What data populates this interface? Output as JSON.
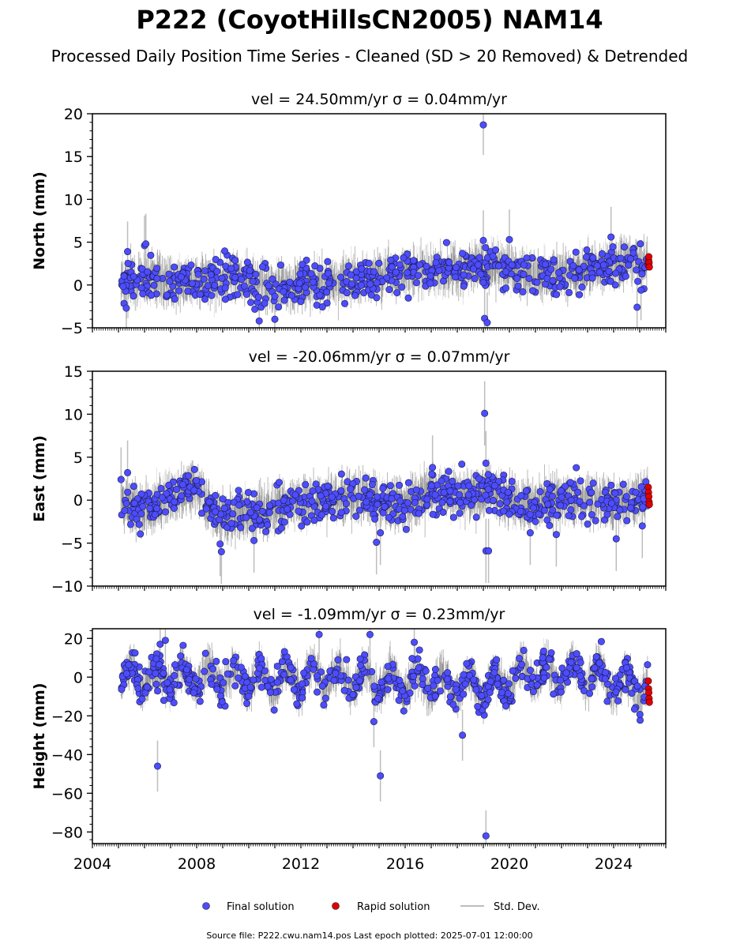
{
  "header": {
    "title": "P222 (CoyotHillsCN2005) NAM14",
    "subtitle": "Processed Daily Position Time Series - Cleaned (SD > 20 Removed) & Detrended"
  },
  "colors": {
    "final": "#4d4dff",
    "rapid": "#e00000",
    "std_dev": "#bdbdbd"
  },
  "legend": {
    "final_label": "Final solution",
    "rapid_label": "Rapid solution",
    "std_label": "Std. Dev."
  },
  "footer": {
    "source_text": "Source file: P222.cwu.nam14.pos  Last epoch plotted: 2025-07-01 12:00:00"
  },
  "chart_data": [
    {
      "type": "scatter",
      "panel": "north",
      "title": "vel = 24.50mm/yr   σ = 0.04mm/yr",
      "ylabel": "North (mm)",
      "xlim": [
        2004.0,
        2026.0
      ],
      "ylim": [
        -5,
        20
      ],
      "yticks": [
        -5,
        0,
        5,
        10,
        15,
        20
      ],
      "baseline": [
        [
          2005.1,
          0.3
        ],
        [
          2006.5,
          0.6
        ],
        [
          2008.0,
          0.3
        ],
        [
          2009.5,
          0.9
        ],
        [
          2011.0,
          -0.3
        ],
        [
          2012.5,
          0.2
        ],
        [
          2014.0,
          0.6
        ],
        [
          2015.5,
          1.3
        ],
        [
          2017.0,
          1.6
        ],
        [
          2018.5,
          1.8
        ],
        [
          2019.5,
          2.4
        ],
        [
          2020.5,
          1.5
        ],
        [
          2022.0,
          1.2
        ],
        [
          2023.5,
          2.2
        ],
        [
          2025.3,
          2.7
        ]
      ],
      "noise": 1.2,
      "band": 1.6,
      "outliers": [
        {
          "x": 2005.35,
          "y": 3.9
        },
        {
          "x": 2005.3,
          "y": -2.7
        },
        {
          "x": 2006.0,
          "y": 4.6
        },
        {
          "x": 2006.05,
          "y": 4.8
        },
        {
          "x": 2010.4,
          "y": -4.2
        },
        {
          "x": 2011.0,
          "y": -4.0
        },
        {
          "x": 2019.0,
          "y": 18.7
        },
        {
          "x": 2019.0,
          "y": 5.2
        },
        {
          "x": 2019.05,
          "y": -3.9
        },
        {
          "x": 2019.15,
          "y": -4.4
        },
        {
          "x": 2020.0,
          "y": 5.3
        },
        {
          "x": 2023.9,
          "y": 5.6
        },
        {
          "x": 2024.9,
          "y": -2.6
        },
        {
          "x": 2025.05,
          "y": -0.6
        }
      ],
      "rapid": [
        {
          "x": 2025.33,
          "y": 2.3
        },
        {
          "x": 2025.34,
          "y": 2.9
        },
        {
          "x": 2025.35,
          "y": 3.3
        },
        {
          "x": 2025.36,
          "y": 2.6
        },
        {
          "x": 2025.37,
          "y": 2.1
        }
      ]
    },
    {
      "type": "scatter",
      "panel": "east",
      "title": "vel = -20.06mm/yr   σ = 0.07mm/yr",
      "ylabel": "East (mm)",
      "xlim": [
        2004.0,
        2026.0
      ],
      "ylim": [
        -10,
        15
      ],
      "yticks": [
        -10,
        -5,
        0,
        5,
        10,
        15
      ],
      "baseline": [
        [
          2005.1,
          0.0
        ],
        [
          2006.0,
          -1.0
        ],
        [
          2007.0,
          0.5
        ],
        [
          2008.0,
          1.5
        ],
        [
          2008.8,
          -1.8
        ],
        [
          2010.0,
          -1.8
        ],
        [
          2011.5,
          -0.5
        ],
        [
          2013.0,
          0.0
        ],
        [
          2014.5,
          0.3
        ],
        [
          2016.0,
          -0.8
        ],
        [
          2017.0,
          1.0
        ],
        [
          2018.5,
          0.4
        ],
        [
          2019.3,
          1.4
        ],
        [
          2020.5,
          -0.6
        ],
        [
          2022.0,
          0.3
        ],
        [
          2023.3,
          0.0
        ],
        [
          2024.5,
          -0.4
        ],
        [
          2025.3,
          0.5
        ]
      ],
      "noise": 1.2,
      "band": 1.7,
      "outliers": [
        {
          "x": 2005.1,
          "y": 2.4
        },
        {
          "x": 2005.35,
          "y": 3.2
        },
        {
          "x": 2008.9,
          "y": -5.1
        },
        {
          "x": 2008.95,
          "y": -6.0
        },
        {
          "x": 2010.2,
          "y": -4.7
        },
        {
          "x": 2014.9,
          "y": -4.9
        },
        {
          "x": 2015.05,
          "y": -3.8
        },
        {
          "x": 2017.05,
          "y": 3.8
        },
        {
          "x": 2019.05,
          "y": 10.1
        },
        {
          "x": 2019.1,
          "y": 4.3
        },
        {
          "x": 2019.1,
          "y": -5.9
        },
        {
          "x": 2019.2,
          "y": -5.9
        },
        {
          "x": 2020.8,
          "y": -3.8
        },
        {
          "x": 2021.8,
          "y": -4.0
        },
        {
          "x": 2024.1,
          "y": -4.5
        },
        {
          "x": 2025.1,
          "y": -3.0
        }
      ],
      "rapid": [
        {
          "x": 2025.33,
          "y": 1.5
        },
        {
          "x": 2025.34,
          "y": 0.9
        },
        {
          "x": 2025.35,
          "y": 0.4
        },
        {
          "x": 2025.36,
          "y": -0.2
        },
        {
          "x": 2025.37,
          "y": -0.5
        }
      ]
    },
    {
      "type": "scatter",
      "panel": "height",
      "title": "vel = -1.09mm/yr   σ = 0.23mm/yr",
      "ylabel": "Height (mm)",
      "xlim": [
        2004.0,
        2026.0
      ],
      "ylim": [
        -86,
        25
      ],
      "yticks": [
        -80,
        -60,
        -40,
        -20,
        0,
        20
      ],
      "xticks": [
        2004,
        2008,
        2012,
        2016,
        2020,
        2024
      ],
      "baseline": [
        [
          2005.1,
          0.0
        ],
        [
          2007.0,
          0.0
        ],
        [
          2009.0,
          0.0
        ],
        [
          2011.0,
          -2.0
        ],
        [
          2013.0,
          0.0
        ],
        [
          2015.0,
          -2.0
        ],
        [
          2017.0,
          -3.0
        ],
        [
          2019.0,
          -6.0
        ],
        [
          2020.5,
          1.0
        ],
        [
          2022.0,
          2.0
        ],
        [
          2023.5,
          0.0
        ],
        [
          2025.3,
          -6.0
        ]
      ],
      "seasonal_amp": 6,
      "noise": 4.5,
      "band": 6,
      "outliers": [
        {
          "x": 2006.5,
          "y": -46
        },
        {
          "x": 2006.6,
          "y": 17
        },
        {
          "x": 2006.8,
          "y": 19
        },
        {
          "x": 2012.7,
          "y": 22
        },
        {
          "x": 2014.65,
          "y": 22
        },
        {
          "x": 2014.8,
          "y": -23
        },
        {
          "x": 2015.05,
          "y": -51
        },
        {
          "x": 2016.35,
          "y": 18
        },
        {
          "x": 2018.2,
          "y": -30
        },
        {
          "x": 2019.1,
          "y": -82
        }
      ],
      "rapid": [
        {
          "x": 2025.33,
          "y": -2
        },
        {
          "x": 2025.34,
          "y": -6
        },
        {
          "x": 2025.35,
          "y": -8
        },
        {
          "x": 2025.36,
          "y": -11
        },
        {
          "x": 2025.37,
          "y": -13
        }
      ]
    }
  ]
}
